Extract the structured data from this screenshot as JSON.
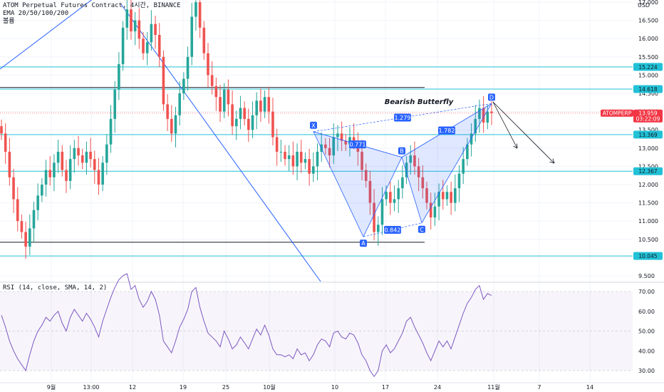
{
  "legend": {
    "title": "ATOM Perpetual Futures Contract, 4시간, BINANCE",
    "ema": "EMA 20/50/100/200",
    "volume": "볼륨"
  },
  "rsi_legend": "RSI (14, close, SMA, 14, 2)",
  "currency": "USD",
  "colors": {
    "up": "#26a69a",
    "down": "#ef5350",
    "level_line": "#22c1d6",
    "trend_line": "#2962ff",
    "pattern": "#2962ff",
    "price_tag": "#f23645"
  },
  "chart_data": {
    "type": "candlestick",
    "title": "Bearish Butterfly",
    "price_axis": {
      "range": [
        9.3,
        17.45
      ],
      "ticks": [
        "17.000",
        "16.500",
        "16.000",
        "15.500",
        "15.000",
        "14.500",
        "14.000",
        "13.500",
        "13.000",
        "12.500",
        "12.000",
        "11.500",
        "11.000",
        "10.500",
        "10.000",
        "9.500"
      ]
    },
    "rsi_axis": {
      "range": [
        26,
        80
      ],
      "ticks": [
        "70.00",
        "60.00",
        "50.00",
        "40.00",
        "30.00"
      ]
    },
    "x_axis": {
      "ticks": [
        "9월",
        "13:00",
        "12",
        "19",
        "25",
        "10월",
        "10",
        "17",
        "24",
        "11월",
        "7",
        "14"
      ]
    },
    "horizontal_levels": [
      {
        "price": 15.224,
        "label": "15.224",
        "style": "cyan"
      },
      {
        "price": 14.618,
        "label": "14.618",
        "style": "cyan"
      },
      {
        "price": 13.369,
        "label": "13.369",
        "style": "cyan"
      },
      {
        "price": 12.367,
        "label": "12.367",
        "style": "cyan"
      },
      {
        "price": 10.045,
        "label": "10.045",
        "style": "cyan"
      },
      {
        "price": 14.66,
        "label": "",
        "style": "dark"
      },
      {
        "price": 10.42,
        "label": "",
        "style": "dark"
      }
    ],
    "current_price": {
      "symbol": "ATOMPERP",
      "price": "13.959",
      "countdown": "03:22:09",
      "value": 13.959
    },
    "pattern": {
      "name": "Bearish Butterfly",
      "points": [
        {
          "label": "X",
          "price": 13.45
        },
        {
          "label": "A",
          "price": 10.57
        },
        {
          "label": "B",
          "price": 12.75
        },
        {
          "label": "C",
          "price": 10.95
        },
        {
          "label": "D",
          "price": 14.22
        }
      ],
      "ratios": [
        "0.771",
        "0.842",
        "1.279",
        "1.782"
      ]
    },
    "closes": [
      13.4,
      12.9,
      12.2,
      11.6,
      11.0,
      10.7,
      10.3,
      10.8,
      11.3,
      11.7,
      12.0,
      12.4,
      12.2,
      12.6,
      12.9,
      12.4,
      12.1,
      12.7,
      13.0,
      12.8,
      12.6,
      12.9,
      12.7,
      12.4,
      12.0,
      12.6,
      13.1,
      13.8,
      14.6,
      15.3,
      16.3,
      16.8,
      16.2,
      16.5,
      16.0,
      15.6,
      15.9,
      16.4,
      16.1,
      15.5,
      14.2,
      13.8,
      13.4,
      13.9,
      14.5,
      14.9,
      15.5,
      16.6,
      17.0,
      16.3,
      15.6,
      15.0,
      14.7,
      14.4,
      14.0,
      14.6,
      14.2,
      13.6,
      13.8,
      14.1,
      13.8,
      13.5,
      13.9,
      14.3,
      14.0,
      14.4,
      14.0,
      13.3,
      12.9,
      12.9,
      12.7,
      12.8,
      12.5,
      12.9,
      12.6,
      12.7,
      12.3,
      12.5,
      12.9,
      13.1,
      13.0,
      12.8,
      13.3,
      13.4,
      13.2,
      13.1,
      13.3,
      13.2,
      12.9,
      12.4,
      12.1,
      11.5,
      10.7,
      10.9,
      11.6,
      11.8,
      11.5,
      11.6,
      11.9,
      12.2,
      12.6,
      12.8,
      12.5,
      12.2,
      11.9,
      11.5,
      11.1,
      11.4,
      11.8,
      11.6,
      11.8,
      11.5,
      11.9,
      12.3,
      12.7,
      13.1,
      13.4,
      13.8,
      14.1,
      13.7,
      14.0,
      13.96
    ],
    "rsi": [
      58,
      52,
      45,
      40,
      36,
      33,
      30,
      38,
      45,
      50,
      53,
      57,
      55,
      58,
      60,
      54,
      50,
      57,
      61,
      58,
      55,
      59,
      56,
      52,
      47,
      55,
      61,
      67,
      72,
      76,
      78,
      79,
      71,
      73,
      66,
      62,
      65,
      70,
      66,
      58,
      45,
      42,
      39,
      45,
      52,
      56,
      61,
      70,
      72,
      62,
      55,
      49,
      47,
      45,
      42,
      50,
      46,
      41,
      43,
      47,
      44,
      41,
      46,
      51,
      48,
      53,
      48,
      41,
      38,
      38,
      37,
      38,
      36,
      41,
      38,
      39,
      35,
      38,
      43,
      46,
      45,
      42,
      49,
      50,
      47,
      46,
      49,
      48,
      44,
      38,
      35,
      30,
      27,
      30,
      40,
      43,
      39,
      41,
      45,
      49,
      55,
      57,
      52,
      48,
      44,
      39,
      35,
      40,
      45,
      42,
      45,
      41,
      47,
      53,
      59,
      64,
      67,
      71,
      73,
      66,
      69,
      68
    ]
  }
}
